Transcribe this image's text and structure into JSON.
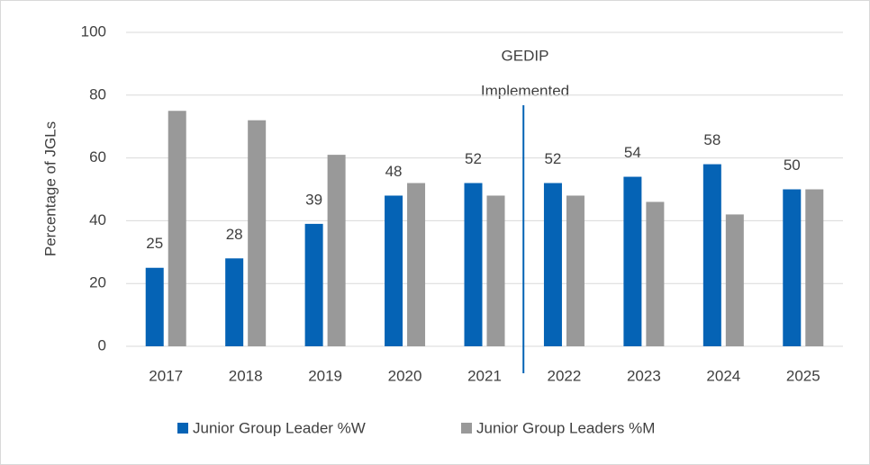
{
  "chart_data": {
    "type": "bar",
    "y_label": "Percentage of JGLs",
    "annotation": [
      "GEDIP",
      "Implemented"
    ],
    "categories": [
      "2017",
      "2018",
      "2019",
      "2020",
      "2021",
      "2022",
      "2023",
      "2024",
      "2025"
    ],
    "series": [
      {
        "name": "Junior Group Leader %W",
        "color": "#0563b5",
        "values": [
          25,
          28,
          39,
          48,
          52,
          52,
          54,
          58,
          50
        ],
        "labels": true
      },
      {
        "name": "Junior Group Leaders %M",
        "color": "#999999",
        "values": [
          75,
          72,
          61,
          52,
          48,
          48,
          46,
          42,
          50
        ]
      }
    ],
    "ylim": [
      0,
      100
    ],
    "yticks": [
      0,
      20,
      40,
      60,
      80,
      100
    ],
    "grid": true,
    "legend": "bottom"
  }
}
